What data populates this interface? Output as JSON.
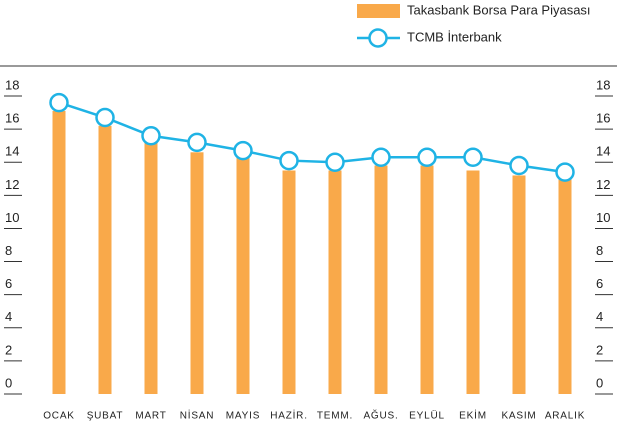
{
  "chart_data": {
    "type": "bar",
    "categories": [
      "OCAK",
      "ŞUBAT",
      "MART",
      "NİSAN",
      "MAYIS",
      "HAZİR.",
      "TEMM.",
      "AĞUS.",
      "EYLÜL",
      "EKİM",
      "KASIM",
      "ARALIK"
    ],
    "series": [
      {
        "name": "Takasbank Borsa Para Piyasası",
        "type": "bar",
        "color": "#f9a94a",
        "values": [
          17.1,
          16.2,
          15.2,
          14.6,
          14.3,
          13.5,
          13.5,
          13.8,
          13.8,
          13.5,
          13.2,
          13.0
        ]
      },
      {
        "name": "TCMB İnterbank",
        "type": "line",
        "color": "#1fb3e5",
        "values": [
          17.6,
          16.7,
          15.6,
          15.2,
          14.7,
          14.1,
          14.0,
          14.3,
          14.3,
          14.3,
          13.8,
          13.4
        ]
      }
    ],
    "ylim": [
      0,
      18
    ],
    "yticks": [
      0,
      2,
      4,
      6,
      8,
      10,
      12,
      14,
      16,
      18
    ],
    "legend": "top-right"
  }
}
